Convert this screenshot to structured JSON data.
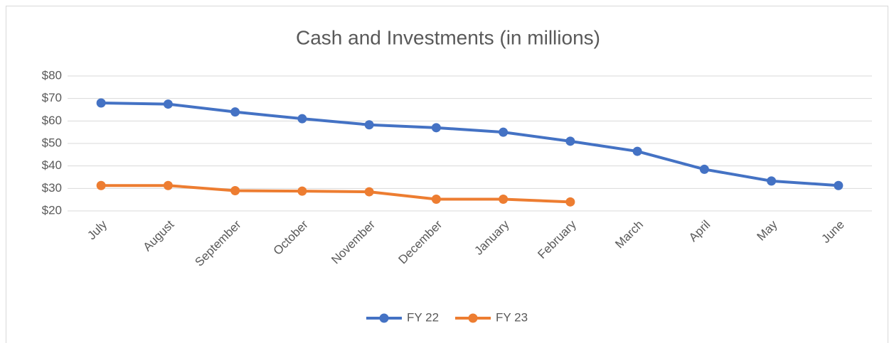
{
  "chart_data": {
    "type": "line",
    "title": "Cash and Investments (in millions)",
    "categories": [
      "July",
      "August",
      "September",
      "October",
      "November",
      "December",
      "January",
      "February",
      "March",
      "April",
      "May",
      "June"
    ],
    "series": [
      {
        "name": "FY 22",
        "color": "#4472c4",
        "values": [
          68,
          67.5,
          64,
          61,
          58.3,
          57,
          55,
          51,
          46.5,
          38.5,
          33.3,
          31.3
        ]
      },
      {
        "name": "FY 23",
        "color": "#ed7d31",
        "values": [
          31.3,
          31.3,
          29,
          28.8,
          28.5,
          25.2,
          25.2,
          24,
          null,
          null,
          null,
          null
        ]
      }
    ],
    "ylim": [
      20,
      80
    ],
    "yticks": [
      {
        "value": 20,
        "label": "$20"
      },
      {
        "value": 30,
        "label": "$30"
      },
      {
        "value": 40,
        "label": "$40"
      },
      {
        "value": 50,
        "label": "$50"
      },
      {
        "value": 60,
        "label": "$60"
      },
      {
        "value": 70,
        "label": "$70"
      },
      {
        "value": 80,
        "label": "$80"
      }
    ],
    "grid": true,
    "legend": "bottom"
  }
}
